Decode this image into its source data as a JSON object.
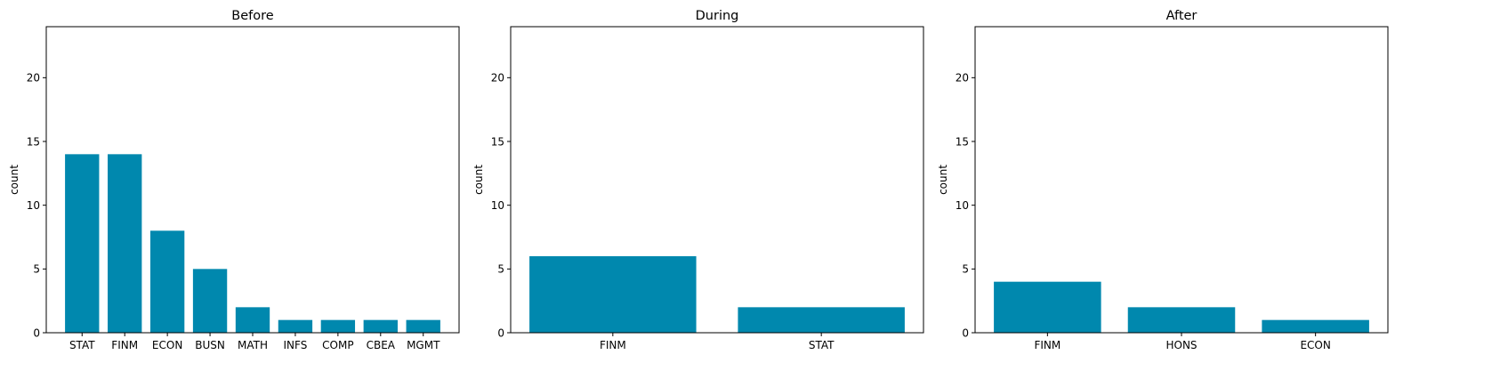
{
  "chart_data": [
    {
      "type": "bar",
      "title": "Before",
      "xlabel": "",
      "ylabel": "count",
      "ylim": [
        0,
        24
      ],
      "yticks": [
        0,
        5,
        10,
        15,
        20
      ],
      "categories": [
        "STAT",
        "FINM",
        "ECON",
        "BUSN",
        "MATH",
        "INFS",
        "COMP",
        "CBEA",
        "MGMT"
      ],
      "values": [
        14,
        14,
        8,
        5,
        2,
        1,
        1,
        1,
        1
      ],
      "color": "#0088ae"
    },
    {
      "type": "bar",
      "title": "During",
      "xlabel": "",
      "ylabel": "count",
      "ylim": [
        0,
        24
      ],
      "yticks": [
        0,
        5,
        10,
        15,
        20
      ],
      "categories": [
        "FINM",
        "STAT"
      ],
      "values": [
        6,
        2
      ],
      "color": "#0088ae"
    },
    {
      "type": "bar",
      "title": "After",
      "xlabel": "",
      "ylabel": "count",
      "ylim": [
        0,
        24
      ],
      "yticks": [
        0,
        5,
        10,
        15,
        20
      ],
      "categories": [
        "FINM",
        "HONS",
        "ECON"
      ],
      "values": [
        4,
        2,
        1
      ],
      "color": "#0088ae"
    }
  ]
}
